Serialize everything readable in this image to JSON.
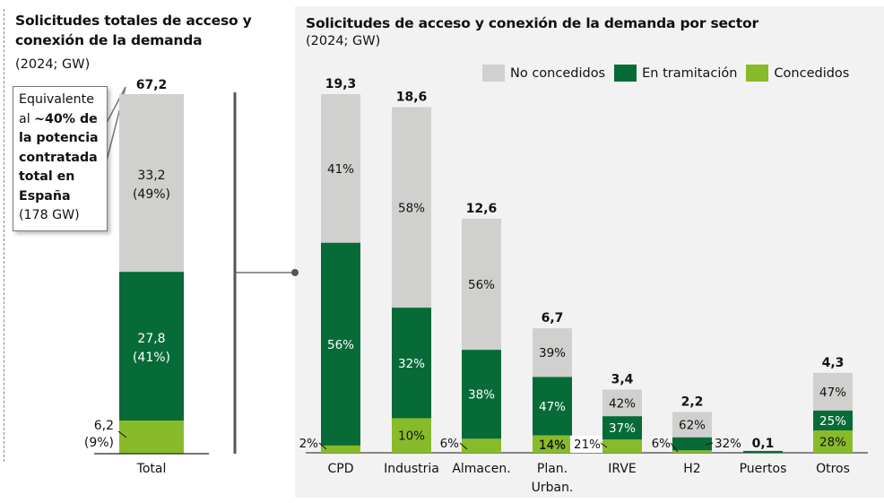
{
  "colors": {
    "no_concedidos": "#d0d0ce",
    "en_tramitacion": "#076b38",
    "concedidos": "#88bb2a",
    "panel_bg": "#f2f2f2"
  },
  "left": {
    "title_line1": "Solicitudes totales de acceso y",
    "title_line2": "conexión de la demanda",
    "subtitle": "(2024; GW)",
    "callout": {
      "line1": "Equivalente",
      "line2_prefix": "al ",
      "line2_bold": "~40% de",
      "line3": "la potencia",
      "line4": "contratada",
      "line5": "total en",
      "line6": "España",
      "line7": "(178 GW)"
    }
  },
  "right": {
    "title": "Solicitudes de acceso y conexión de la demanda por sector",
    "subtitle": "(2024; GW)"
  },
  "chart_data": [
    {
      "type": "bar",
      "stacked": true,
      "title": "Solicitudes totales de acceso y conexión de la demanda",
      "subtitle": "(2024; GW)",
      "categories": [
        "Total"
      ],
      "total_labels": [
        "67,2"
      ],
      "totals": [
        67.2
      ],
      "series": [
        {
          "name": "Concedidos",
          "values": [
            6.2
          ],
          "labels": [
            "6,2\n(9%)"
          ]
        },
        {
          "name": "En tramitación",
          "values": [
            27.8
          ],
          "labels": [
            "27,8\n(41%)"
          ]
        },
        {
          "name": "No concedidos",
          "values": [
            33.2
          ],
          "labels": [
            "33,2\n(49%)"
          ]
        }
      ],
      "ylim": [
        0,
        67.2
      ]
    },
    {
      "type": "bar",
      "stacked": true,
      "title": "Solicitudes de acceso y conexión de la demanda por sector",
      "subtitle": "(2024; GW)",
      "legend": [
        "No concedidos",
        "En tramitación",
        "Concedidos"
      ],
      "legend_position": "top-right",
      "categories": [
        "CPD",
        "Industria",
        "Almacen.",
        "Plan.\nUrban.",
        "IRVE",
        "H2",
        "Puertos",
        "Otros"
      ],
      "totals": [
        19.3,
        18.6,
        12.6,
        6.7,
        3.4,
        2.2,
        0.1,
        4.3
      ],
      "total_labels": [
        "19,3",
        "18,6",
        "12,6",
        "6,7",
        "3,4",
        "2,2",
        "0,1",
        "4,3"
      ],
      "series": [
        {
          "name": "Concedidos",
          "percent": [
            2,
            10,
            6,
            14,
            21,
            6,
            0,
            28
          ],
          "labels": [
            "2%",
            "10%",
            "6%",
            "14%",
            "21%",
            "6%",
            "",
            "28%"
          ]
        },
        {
          "name": "En tramitación",
          "percent": [
            56,
            32,
            38,
            47,
            37,
            32,
            100,
            25
          ],
          "labels": [
            "56%",
            "32%",
            "38%",
            "47%",
            "37%",
            "32%",
            "",
            "25%"
          ]
        },
        {
          "name": "No concedidos",
          "percent": [
            41,
            58,
            56,
            39,
            42,
            62,
            0,
            47
          ],
          "labels": [
            "41%",
            "58%",
            "56%",
            "39%",
            "42%",
            "62%",
            "",
            "47%"
          ]
        }
      ],
      "ylim": [
        0,
        19.3
      ]
    }
  ]
}
